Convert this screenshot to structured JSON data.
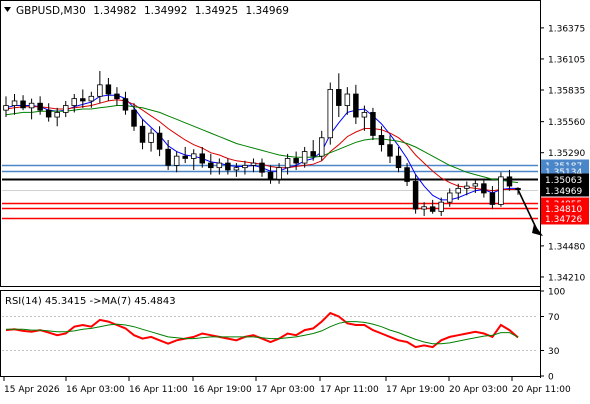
{
  "header": {
    "symbol": "GBPUSD,M30",
    "open": "1.34982",
    "high": "1.34992",
    "low": "1.34925",
    "close": "1.34969"
  },
  "indicator": {
    "label": "RSI(14) 45.3415 ->MA(7) 45.4843"
  },
  "colors": {
    "candle": "#000000",
    "ma_fast": "#0000ff",
    "ma_mid": "#dd0000",
    "ma_slow": "#008000",
    "blue_level": "#4a86c8",
    "black_level": "#000000",
    "red_level": "#ff0000",
    "rsi_line": "#ff0000",
    "rsi_ma": "#008000",
    "arrow": "#000000"
  },
  "chart_data": [
    {
      "type": "candlestick",
      "timeframe": "M30",
      "y_axis_ticks": [
        "1.36375",
        "1.36105",
        "1.35835",
        "1.35560",
        "1.35290",
        "1.34480",
        "1.34210"
      ],
      "ylim": [
        1.3414,
        1.366
      ],
      "x_axis_ticks": [
        "15 Apr 2026",
        "16 Apr 03:00",
        "16 Apr 11:00",
        "16 Apr 19:00",
        "17 Apr 03:00",
        "17 Apr 11:00",
        "17 Apr 19:00",
        "20 Apr 03:00",
        "20 Apr 11:00"
      ],
      "candles_ohlc": [
        [
          1.3566,
          1.3578,
          1.356,
          1.357
        ],
        [
          1.357,
          1.358,
          1.3562,
          1.3574
        ],
        [
          1.3574,
          1.3579,
          1.3566,
          1.3568
        ],
        [
          1.3568,
          1.3576,
          1.3558,
          1.3572
        ],
        [
          1.3572,
          1.3578,
          1.3562,
          1.3566
        ],
        [
          1.3566,
          1.3572,
          1.3556,
          1.356
        ],
        [
          1.356,
          1.3568,
          1.3552,
          1.3564
        ],
        [
          1.3564,
          1.3574,
          1.356,
          1.357
        ],
        [
          1.357,
          1.358,
          1.3564,
          1.3576
        ],
        [
          1.3576,
          1.3584,
          1.3568,
          1.3574
        ],
        [
          1.3574,
          1.3582,
          1.3568,
          1.3578
        ],
        [
          1.3578,
          1.36,
          1.3572,
          1.3588
        ],
        [
          1.3588,
          1.3594,
          1.3574,
          1.358
        ],
        [
          1.358,
          1.3586,
          1.357,
          1.3576
        ],
        [
          1.3576,
          1.3582,
          1.3562,
          1.3566
        ],
        [
          1.3566,
          1.3572,
          1.3548,
          1.3552
        ],
        [
          1.3552,
          1.3558,
          1.3532,
          1.3538
        ],
        [
          1.3538,
          1.355,
          1.353,
          1.3546
        ],
        [
          1.3546,
          1.3552,
          1.3526,
          1.3532
        ],
        [
          1.3532,
          1.354,
          1.3514,
          1.3518
        ],
        [
          1.3518,
          1.353,
          1.3512,
          1.3526
        ],
        [
          1.3526,
          1.3534,
          1.352,
          1.3524
        ],
        [
          1.3524,
          1.3532,
          1.3514,
          1.3528
        ],
        [
          1.3528,
          1.3534,
          1.3516,
          1.352
        ],
        [
          1.352,
          1.3528,
          1.351,
          1.3516
        ],
        [
          1.3516,
          1.3524,
          1.351,
          1.352
        ],
        [
          1.352,
          1.3524,
          1.351,
          1.3514
        ],
        [
          1.3514,
          1.352,
          1.3508,
          1.3516
        ],
        [
          1.3516,
          1.3522,
          1.351,
          1.3518
        ],
        [
          1.3518,
          1.3524,
          1.3512,
          1.352
        ],
        [
          1.352,
          1.3524,
          1.3508,
          1.3512
        ],
        [
          1.3512,
          1.3518,
          1.3502,
          1.3506
        ],
        [
          1.3506,
          1.352,
          1.3502,
          1.3516
        ],
        [
          1.3516,
          1.3528,
          1.351,
          1.3524
        ],
        [
          1.3524,
          1.353,
          1.3514,
          1.352
        ],
        [
          1.352,
          1.3534,
          1.3516,
          1.353
        ],
        [
          1.353,
          1.354,
          1.3522,
          1.3526
        ],
        [
          1.3526,
          1.3548,
          1.3522,
          1.3542
        ],
        [
          1.3542,
          1.359,
          1.3536,
          1.3584
        ],
        [
          1.3584,
          1.3598,
          1.356,
          1.357
        ],
        [
          1.357,
          1.3586,
          1.3562,
          1.358
        ],
        [
          1.358,
          1.3588,
          1.3554,
          1.356
        ],
        [
          1.356,
          1.357,
          1.3548,
          1.3564
        ],
        [
          1.3564,
          1.3568,
          1.354,
          1.3544
        ],
        [
          1.3544,
          1.3552,
          1.353,
          1.3536
        ],
        [
          1.3536,
          1.3544,
          1.352,
          1.3526
        ],
        [
          1.3526,
          1.3534,
          1.3512,
          1.3516
        ],
        [
          1.3516,
          1.352,
          1.35,
          1.3504
        ],
        [
          1.3504,
          1.351,
          1.3476,
          1.348
        ],
        [
          1.348,
          1.3486,
          1.3474,
          1.3482
        ],
        [
          1.3482,
          1.3488,
          1.3476,
          1.3478
        ],
        [
          1.3478,
          1.349,
          1.3474,
          1.3486
        ],
        [
          1.3486,
          1.3498,
          1.3482,
          1.3494
        ],
        [
          1.3494,
          1.3502,
          1.3488,
          1.3498
        ],
        [
          1.3498,
          1.3504,
          1.3492,
          1.35
        ],
        [
          1.35,
          1.3506,
          1.3494,
          1.3502
        ],
        [
          1.3502,
          1.3506,
          1.349,
          1.3494
        ],
        [
          1.3494,
          1.35,
          1.348,
          1.3484
        ],
        [
          1.3484,
          1.3512,
          1.3482,
          1.3508
        ],
        [
          1.3508,
          1.3514,
          1.3496,
          1.35
        ],
        [
          1.3498,
          1.3499,
          1.34925,
          1.34969
        ]
      ],
      "moving_averages": [
        {
          "color": "blue",
          "values": [
            1.3568,
            1.357,
            1.357,
            1.357,
            1.3569,
            1.3566,
            1.3565,
            1.3566,
            1.3569,
            1.3571,
            1.3573,
            1.3578,
            1.3579,
            1.3579,
            1.3576,
            1.3568,
            1.3558,
            1.3551,
            1.3544,
            1.3535,
            1.353,
            1.3527,
            1.3526,
            1.3524,
            1.3521,
            1.352,
            1.3518,
            1.3517,
            1.3517,
            1.3518,
            1.3516,
            1.3513,
            1.3513,
            1.3516,
            1.3518,
            1.3522,
            1.3524,
            1.353,
            1.3545,
            1.3555,
            1.3564,
            1.3566,
            1.3567,
            1.3561,
            1.3554,
            1.3545,
            1.3535,
            1.3524,
            1.351,
            1.35,
            1.3492,
            1.3488,
            1.3488,
            1.349,
            1.3493,
            1.3496,
            1.3497,
            1.3494,
            1.3497,
            1.3498,
            1.3498
          ]
        },
        {
          "color": "red",
          "values": [
            1.3567,
            1.3568,
            1.3569,
            1.3569,
            1.3569,
            1.3568,
            1.3567,
            1.3567,
            1.3568,
            1.3569,
            1.357,
            1.3572,
            1.3574,
            1.3575,
            1.3574,
            1.3571,
            1.3566,
            1.3561,
            1.3556,
            1.355,
            1.3545,
            1.354,
            1.3536,
            1.3533,
            1.3529,
            1.3527,
            1.3524,
            1.3522,
            1.3521,
            1.352,
            1.3519,
            1.3517,
            1.3516,
            1.3516,
            1.3517,
            1.3518,
            1.3519,
            1.3522,
            1.353,
            1.3536,
            1.3543,
            1.3547,
            1.355,
            1.355,
            1.3549,
            1.3546,
            1.3542,
            1.3536,
            1.3527,
            1.352,
            1.3513,
            1.3507,
            1.3503,
            1.35,
            1.3499,
            1.3498,
            1.3497,
            1.3496,
            1.3497,
            1.3497,
            1.3497
          ]
        },
        {
          "color": "green",
          "values": [
            1.3562,
            1.3563,
            1.3564,
            1.3564,
            1.3565,
            1.3565,
            1.3565,
            1.3565,
            1.3566,
            1.3567,
            1.3567,
            1.3568,
            1.3569,
            1.357,
            1.357,
            1.3569,
            1.3568,
            1.3566,
            1.3564,
            1.3561,
            1.3558,
            1.3555,
            1.3552,
            1.3549,
            1.3546,
            1.3543,
            1.354,
            1.3537,
            1.3535,
            1.3533,
            1.3531,
            1.3529,
            1.3527,
            1.3526,
            1.3525,
            1.3525,
            1.3525,
            1.3526,
            1.3529,
            1.3532,
            1.3535,
            1.3538,
            1.354,
            1.3541,
            1.3541,
            1.354,
            1.3539,
            1.3537,
            1.3534,
            1.353,
            1.3526,
            1.3522,
            1.3518,
            1.3515,
            1.3512,
            1.351,
            1.3508,
            1.3506,
            1.3505,
            1.3504,
            1.3503
          ]
        }
      ],
      "price_levels": [
        {
          "label": "1.35187",
          "value": 1.35187,
          "kind": "blue"
        },
        {
          "label": "1.35134",
          "value": 1.35134,
          "kind": "blue"
        },
        {
          "label": "1.35063",
          "value": 1.35063,
          "kind": "black"
        },
        {
          "label": "1.34969",
          "value": 1.34969,
          "kind": "current"
        },
        {
          "label": "1.34855",
          "value": 1.34855,
          "kind": "red"
        },
        {
          "label": "1.34810",
          "value": 1.3481,
          "kind": "red"
        },
        {
          "label": "1.34726",
          "value": 1.34726,
          "kind": "red"
        }
      ]
    },
    {
      "type": "line",
      "title": "RSI(14) 45.3415 ->MA(7) 45.4843",
      "ylim": [
        0,
        100
      ],
      "y_axis_ticks": [
        "100",
        "70",
        "30",
        "0"
      ],
      "levels": [
        70,
        30
      ],
      "series": [
        {
          "color": "red",
          "values": [
            54,
            55,
            53,
            52,
            54,
            51,
            48,
            50,
            58,
            60,
            58,
            66,
            64,
            60,
            56,
            48,
            44,
            46,
            42,
            38,
            42,
            44,
            46,
            50,
            48,
            46,
            44,
            42,
            46,
            48,
            44,
            40,
            44,
            50,
            48,
            54,
            56,
            64,
            74,
            70,
            62,
            60,
            60,
            54,
            50,
            46,
            42,
            40,
            34,
            36,
            34,
            42,
            46,
            48,
            50,
            52,
            50,
            46,
            60,
            54,
            45.3415
          ]
        },
        {
          "color": "green",
          "values": [
            55,
            55,
            55,
            54,
            54,
            53,
            52,
            52,
            53,
            55,
            56,
            58,
            60,
            61,
            60,
            58,
            55,
            52,
            49,
            46,
            45,
            44,
            44,
            45,
            46,
            46,
            46,
            46,
            46,
            46,
            45,
            44,
            44,
            45,
            46,
            48,
            50,
            53,
            58,
            62,
            64,
            64,
            63,
            61,
            58,
            54,
            51,
            47,
            43,
            40,
            38,
            38,
            39,
            41,
            43,
            45,
            47,
            48,
            51,
            51,
            45.4843
          ]
        }
      ]
    }
  ]
}
